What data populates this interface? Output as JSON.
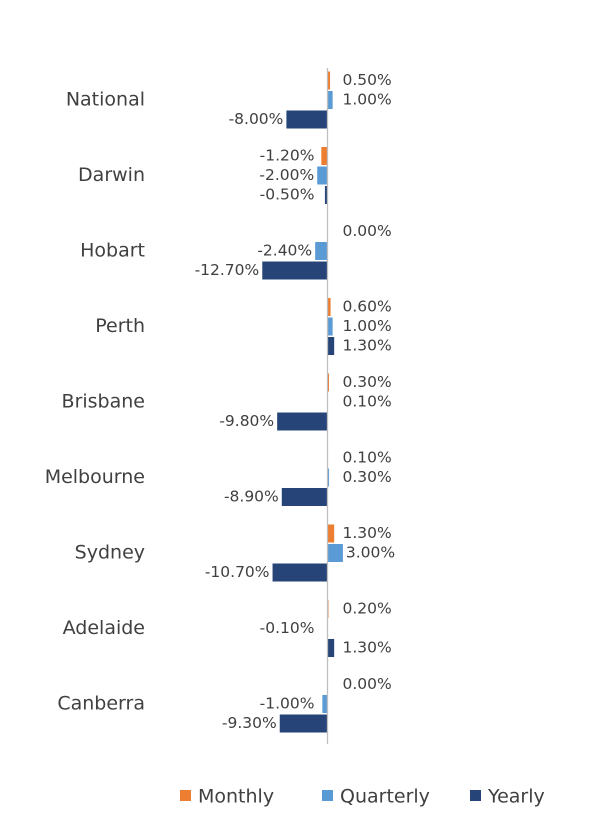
{
  "chart_data": {
    "type": "bar",
    "orientation": "horizontal",
    "categories": [
      "National",
      "Darwin",
      "Hobart",
      "Perth",
      "Brisbane",
      "Melbourne",
      "Sydney",
      "Adelaide",
      "Canberra"
    ],
    "series": [
      {
        "name": "Monthly",
        "color": "#ed7d31",
        "values": [
          0.5,
          -1.2,
          0.0,
          0.6,
          0.3,
          0.1,
          1.3,
          0.2,
          0.0
        ],
        "value_labels": [
          "0.50%",
          "-1.20%",
          "0.00%",
          "0.60%",
          "0.30%",
          "0.10%",
          "1.30%",
          "0.20%",
          "0.00%"
        ]
      },
      {
        "name": "Quarterly",
        "color": "#5b9bd5",
        "values": [
          1.0,
          -2.0,
          -2.4,
          1.0,
          0.1,
          0.3,
          3.0,
          -0.1,
          -1.0
        ],
        "value_labels": [
          "1.00%",
          "-2.00%",
          "-2.40%",
          "1.00%",
          "0.10%",
          "0.30%",
          "3.00%",
          "-0.10%",
          "-1.00%"
        ]
      },
      {
        "name": "Yearly",
        "color": "#264478",
        "values": [
          -8.0,
          -0.5,
          -12.7,
          1.3,
          -9.8,
          -8.9,
          -10.7,
          1.3,
          -9.3
        ],
        "value_labels": [
          "-8.00%",
          "-0.50%",
          "-12.70%",
          "1.30%",
          "-9.80%",
          "-8.90%",
          "-10.70%",
          "1.30%",
          "-9.30%"
        ]
      }
    ],
    "xlim": [
      -14,
      3
    ],
    "grid": false,
    "legend": "bottom"
  }
}
